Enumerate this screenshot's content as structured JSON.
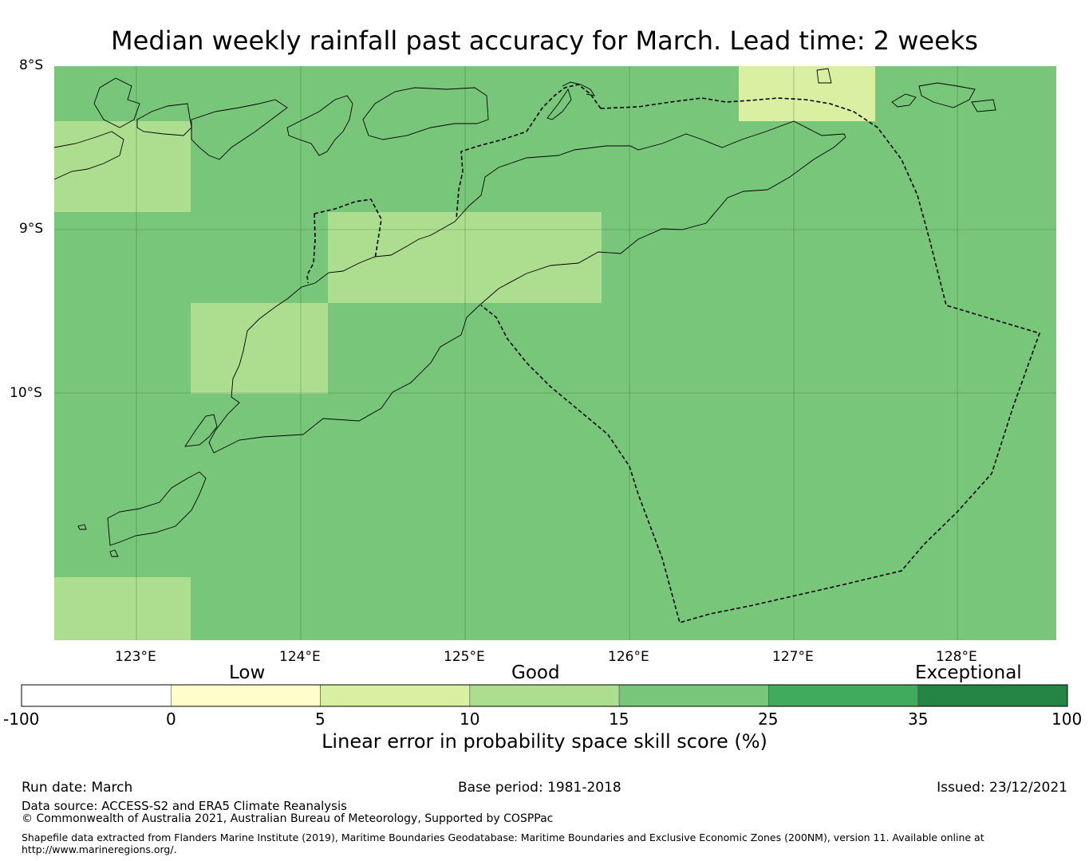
{
  "title": "Median weekly rainfall past accuracy for March. Lead time: 2 weeks",
  "map": {
    "lat_labels": [
      "8°S",
      "9°S",
      "10°S"
    ],
    "lon_labels": [
      "123°E",
      "124°E",
      "125°E",
      "126°E",
      "127°E",
      "128°E"
    ],
    "background_category": "15-25"
  },
  "legend": {
    "categories": [
      "Low",
      "Good",
      "Exceptional"
    ],
    "ticks": [
      "-100",
      "0",
      "5",
      "10",
      "15",
      "25",
      "35",
      "100"
    ],
    "bins": [
      {
        "range": "-100 to 0",
        "color": "#ffffff"
      },
      {
        "range": "0 to 5",
        "color": "#ffffcc"
      },
      {
        "range": "5 to 10",
        "color": "#d9f0a3"
      },
      {
        "range": "10 to 15",
        "color": "#addd8e"
      },
      {
        "range": "15 to 25",
        "color": "#78c679"
      },
      {
        "range": "25 to 35",
        "color": "#41ab5d"
      },
      {
        "range": "35 to 100",
        "color": "#238443"
      }
    ],
    "axis_label": "Linear error in probability space skill score (%)"
  },
  "footer": {
    "run_date": "Run date: March",
    "base_period": "Base period: 1981-2018",
    "issued": "Issued: 23/12/2021",
    "data_source": "Data source: ACCESS-S2 and ERA5 Climate Reanalysis",
    "copyright": "© Commonwealth of Australia 2021, Australian Bureau of Meteorology, Supported by COSPPac",
    "shapefile_line1": "Shapefile data extracted from Flanders Marine Institute (2019), Maritime Boundaries Geodatabase: Maritime Boundaries and Exclusive Economic Zones (200NM), version 11. Available online at",
    "shapefile_line2": "http://www.marineregions.org/."
  }
}
